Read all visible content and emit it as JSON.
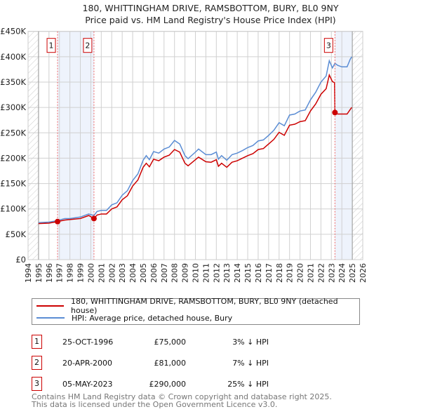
{
  "chart_data": {
    "type": "line",
    "title": "180, WHITTINGHAM DRIVE, RAMSBOTTOM, BURY, BL0 9NY",
    "subtitle": "Price paid vs. HM Land Registry's House Price Index (HPI)",
    "xlim": [
      1994,
      2026
    ],
    "ylim": [
      0,
      450000
    ],
    "yticks": [
      {
        "v": 0,
        "label": "£0"
      },
      {
        "v": 50000,
        "label": "£50K"
      },
      {
        "v": 100000,
        "label": "£100K"
      },
      {
        "v": 150000,
        "label": "£150K"
      },
      {
        "v": 200000,
        "label": "£200K"
      },
      {
        "v": 250000,
        "label": "£250K"
      },
      {
        "v": 300000,
        "label": "£300K"
      },
      {
        "v": 350000,
        "label": "£350K"
      },
      {
        "v": 400000,
        "label": "£400K"
      },
      {
        "v": 450000,
        "label": "£450K"
      }
    ],
    "xticks": [
      "1994",
      "1995",
      "1996",
      "1997",
      "1998",
      "1999",
      "2000",
      "2001",
      "2002",
      "2003",
      "2004",
      "2005",
      "2006",
      "2007",
      "2008",
      "2009",
      "2010",
      "2011",
      "2012",
      "2013",
      "2014",
      "2015",
      "2016",
      "2017",
      "2018",
      "2019",
      "2020",
      "2021",
      "2022",
      "2023",
      "2024",
      "2025",
      "2026"
    ],
    "data_range": [
      1995,
      2025
    ],
    "series": [
      {
        "name": "180, WHITTINGHAM DRIVE, RAMSBOTTOM, BURY, BL0 9NY (detached house)",
        "color": "#cc0000",
        "x": [
          1995,
          1996,
          1996.82,
          1997.5,
          1998,
          1999,
          1999.8,
          2000.3,
          2000.6,
          2001,
          2001.5,
          2002,
          2002.5,
          2003,
          2003.5,
          2004,
          2004.5,
          2005,
          2005.3,
          2005.6,
          2006,
          2006.5,
          2007,
          2007.5,
          2008,
          2008.5,
          2009,
          2009.3,
          2010,
          2010.3,
          2011,
          2011.5,
          2012,
          2012.2,
          2012.5,
          2013,
          2013.5,
          2014,
          2014.5,
          2015,
          2015.5,
          2016,
          2016.5,
          2017,
          2017.5,
          2018,
          2018.5,
          2019,
          2019.5,
          2020,
          2020.5,
          2021,
          2021.5,
          2022,
          2022.5,
          2022.8,
          2023.1,
          2023.3,
          2023.34,
          2023.6,
          2024,
          2024.5,
          2024.8,
          2024.95
        ],
        "y": [
          71000,
          72000,
          75000,
          78000,
          79000,
          81000,
          87000,
          81000,
          88000,
          90000,
          90000,
          100000,
          104000,
          118000,
          126000,
          145000,
          157000,
          182000,
          190000,
          183000,
          198000,
          195000,
          202000,
          206000,
          217000,
          212000,
          190000,
          185000,
          197000,
          202000,
          193000,
          192000,
          197000,
          184000,
          190000,
          182000,
          192000,
          195000,
          200000,
          205000,
          209000,
          217000,
          219000,
          228000,
          237000,
          251000,
          245000,
          265000,
          267000,
          272000,
          274000,
          293000,
          307000,
          326000,
          337000,
          364000,
          351000,
          349000,
          290000,
          287000,
          287000,
          287000,
          296000,
          300000
        ]
      },
      {
        "name": "HPI: Average price, detached house, Bury",
        "color": "#5b8dd4",
        "x": [
          1995,
          1996,
          1996.82,
          1997.5,
          1998,
          1999,
          1999.8,
          2000.3,
          2000.6,
          2001,
          2001.5,
          2002,
          2002.5,
          2003,
          2003.5,
          2004,
          2004.5,
          2005,
          2005.3,
          2005.6,
          2006,
          2006.5,
          2007,
          2007.5,
          2008,
          2008.5,
          2009,
          2009.3,
          2010,
          2010.3,
          2011,
          2011.5,
          2012,
          2012.2,
          2012.5,
          2013,
          2013.5,
          2014,
          2014.5,
          2015,
          2015.5,
          2016,
          2016.5,
          2017,
          2017.5,
          2018,
          2018.5,
          2019,
          2019.5,
          2020,
          2020.5,
          2021,
          2021.5,
          2022,
          2022.5,
          2022.8,
          2023.1,
          2023.34,
          2023.6,
          2024,
          2024.5,
          2024.8,
          2024.95
        ],
        "y": [
          73000,
          74000,
          77000,
          81000,
          81000,
          84000,
          90000,
          87000,
          95000,
          97000,
          97000,
          108000,
          112000,
          127000,
          136000,
          156000,
          169000,
          196000,
          205000,
          197000,
          213000,
          210000,
          218000,
          222000,
          235000,
          228000,
          205000,
          199000,
          212000,
          218000,
          207000,
          207000,
          212000,
          198000,
          205000,
          196000,
          207000,
          210000,
          215000,
          221000,
          225000,
          234000,
          236000,
          245000,
          255000,
          270000,
          264000,
          285000,
          287000,
          293000,
          295000,
          315000,
          330000,
          350000,
          362000,
          392000,
          378000,
          387000,
          383000,
          380000,
          380000,
          395000,
          400000
        ]
      }
    ],
    "sales": [
      {
        "id": "1",
        "date": "25-OCT-1996",
        "x": 1996.82,
        "price": 75000,
        "price_label": "£75,000",
        "hpi": "3% ↓ HPI"
      },
      {
        "id": "2",
        "date": "20-APR-2000",
        "x": 2000.3,
        "price": 81000,
        "price_label": "£81,000",
        "hpi": "7% ↓ HPI"
      },
      {
        "id": "3",
        "date": "05-MAY-2023",
        "x": 2023.34,
        "price": 290000,
        "price_label": "£290,000",
        "hpi": "25% ↓ HPI"
      }
    ],
    "shaded_ranges": [
      [
        1996.82,
        2000.3
      ],
      [
        2023.34,
        2025
      ]
    ]
  },
  "footer": [
    "Contains HM Land Registry data © Crown copyright and database right 2025.",
    "This data is licensed under the Open Government Licence v3.0."
  ]
}
